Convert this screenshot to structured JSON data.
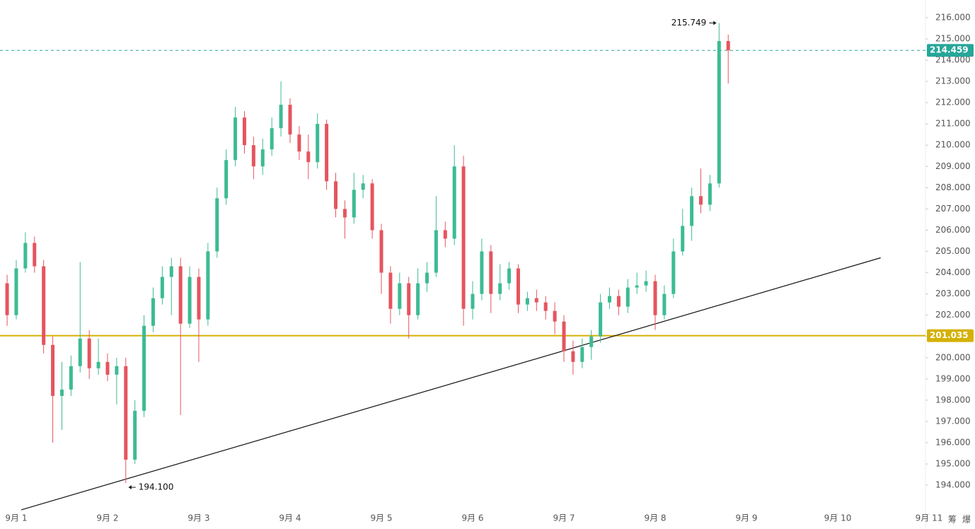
{
  "chart_data": {
    "type": "candlestick",
    "x": [
      -0.1,
      0,
      0.1,
      0.2,
      0.3,
      0.4,
      0.5,
      0.6,
      0.7,
      0.8,
      0.9,
      1,
      1.1,
      1.2,
      1.3,
      1.4,
      1.5,
      1.6,
      1.7,
      1.8,
      1.9,
      2,
      2.1,
      2.2,
      2.3,
      2.4,
      2.5,
      2.6,
      2.7,
      2.8,
      2.9,
      3,
      3.1,
      3.2,
      3.3,
      3.4,
      3.5,
      3.6,
      3.7,
      3.8,
      3.9,
      4,
      4.1,
      4.2,
      4.3,
      4.4,
      4.5,
      4.6,
      4.7,
      4.8,
      4.9,
      5,
      5.1,
      5.2,
      5.3,
      5.4,
      5.5,
      5.6,
      5.7,
      5.8,
      5.9,
      6,
      6.1,
      6.2,
      6.3,
      6.4,
      6.5,
      6.6,
      6.7,
      6.8,
      6.9,
      7,
      7.1,
      7.2,
      7.3,
      7.4,
      7.5,
      7.6,
      7.7,
      7.8
    ],
    "open": [
      203.5,
      202.0,
      204.2,
      205.4,
      204.3,
      200.6,
      198.2,
      198.5,
      199.6,
      200.9,
      199.5,
      199.8,
      199.2,
      199.6,
      195.2,
      197.5,
      201.5,
      202.8,
      203.8,
      204.3,
      201.6,
      203.8,
      201.8,
      205.0,
      207.5,
      209.3,
      211.3,
      210.0,
      209.0,
      209.8,
      210.8,
      211.9,
      210.5,
      209.7,
      209.2,
      211.0,
      208.3,
      207.0,
      206.6,
      207.9,
      208.2,
      206.0,
      204.0,
      202.3,
      203.5,
      202.0,
      203.5,
      204.0,
      206.0,
      205.6,
      209.0,
      202.3,
      203.0,
      205.0,
      203.0,
      203.5,
      204.2,
      202.5,
      202.8,
      202.6,
      202.2,
      201.7,
      200.3,
      199.8,
      200.5,
      201.0,
      202.6,
      202.9,
      202.4,
      203.3,
      203.4,
      203.6,
      202.0,
      203.0,
      205.0,
      206.2,
      207.6,
      207.2,
      208.2,
      214.9
    ],
    "high": [
      203.9,
      204.6,
      205.9,
      205.7,
      204.6,
      201.0,
      199.8,
      200.1,
      204.5,
      201.3,
      200.9,
      200.2,
      200.0,
      200.0,
      198.0,
      202.0,
      203.3,
      204.3,
      204.7,
      204.7,
      204.3,
      204.2,
      205.4,
      208.0,
      209.8,
      211.8,
      211.6,
      210.4,
      210.3,
      211.3,
      213.0,
      212.2,
      210.9,
      210.5,
      211.5,
      211.2,
      208.7,
      207.4,
      208.7,
      208.6,
      208.4,
      206.3,
      204.3,
      204.0,
      203.8,
      204.2,
      204.5,
      207.6,
      206.4,
      210.0,
      209.5,
      203.6,
      205.6,
      205.3,
      204.4,
      204.5,
      204.4,
      203.1,
      203.2,
      202.9,
      202.6,
      202.0,
      200.8,
      200.9,
      201.3,
      203.0,
      203.3,
      203.2,
      203.7,
      204.0,
      204.1,
      203.9,
      203.4,
      205.6,
      207.0,
      208.0,
      208.9,
      208.6,
      215.749,
      215.2
    ],
    "low": [
      201.5,
      201.8,
      204.0,
      204.0,
      200.2,
      196.0,
      196.6,
      198.2,
      199.3,
      199.0,
      199.2,
      198.9,
      197.8,
      194.1,
      195.0,
      197.2,
      201.2,
      202.5,
      202.0,
      197.3,
      201.4,
      199.8,
      201.5,
      204.7,
      207.2,
      209.0,
      209.6,
      208.4,
      208.6,
      209.5,
      210.4,
      210.1,
      209.3,
      208.4,
      208.9,
      207.9,
      206.6,
      205.6,
      206.3,
      207.5,
      205.6,
      203.0,
      201.6,
      202.0,
      200.9,
      201.8,
      203.1,
      203.8,
      205.2,
      205.3,
      201.5,
      201.8,
      202.7,
      202.1,
      202.7,
      203.2,
      202.1,
      202.2,
      202.2,
      201.8,
      201.1,
      199.8,
      199.2,
      199.5,
      199.9,
      200.7,
      202.3,
      202.0,
      202.1,
      203.0,
      203.1,
      201.3,
      201.8,
      202.8,
      204.8,
      205.5,
      206.8,
      206.9,
      208.0,
      212.9
    ],
    "close": [
      202.0,
      204.2,
      205.4,
      204.3,
      200.6,
      198.2,
      198.5,
      199.6,
      200.9,
      199.5,
      199.8,
      199.2,
      199.6,
      195.2,
      197.5,
      201.5,
      202.8,
      203.8,
      204.3,
      201.6,
      203.8,
      201.8,
      205.0,
      207.5,
      209.3,
      211.3,
      210.0,
      209.0,
      209.8,
      210.8,
      211.9,
      210.5,
      209.7,
      209.2,
      211.0,
      208.3,
      207.0,
      206.6,
      207.9,
      208.2,
      206.0,
      204.0,
      202.3,
      203.5,
      202.0,
      203.5,
      204.0,
      206.0,
      205.6,
      209.0,
      202.3,
      203.0,
      205.0,
      203.0,
      203.5,
      204.2,
      202.5,
      202.8,
      202.6,
      202.2,
      201.7,
      200.3,
      199.8,
      200.5,
      201.0,
      202.6,
      202.9,
      202.4,
      203.3,
      203.4,
      203.6,
      202.0,
      203.0,
      205.0,
      206.2,
      207.6,
      207.2,
      208.2,
      214.9,
      214.459
    ],
    "up_color": "#3dbb94",
    "down_color": "#e5555f",
    "xlim": [
      -0.178,
      9.961
    ],
    "ylim": [
      193.07,
      216.83
    ],
    "xticks": [
      {
        "value": 0,
        "label": "9月 1"
      },
      {
        "value": 1,
        "label": "9月 2"
      },
      {
        "value": 2,
        "label": "9月 3"
      },
      {
        "value": 3,
        "label": "9月 4"
      },
      {
        "value": 4,
        "label": "9月 5"
      },
      {
        "value": 5,
        "label": "9月 6"
      },
      {
        "value": 6,
        "label": "9月 7"
      },
      {
        "value": 7,
        "label": "9月 8"
      },
      {
        "value": 8,
        "label": "9月 9"
      },
      {
        "value": 9,
        "label": "9月 10"
      },
      {
        "value": 10,
        "label": "9月 11"
      }
    ],
    "yticks": [
      {
        "value": 194,
        "label": "194.000"
      },
      {
        "value": 195,
        "label": "195.000"
      },
      {
        "value": 196,
        "label": "196.000"
      },
      {
        "value": 197,
        "label": "197.000"
      },
      {
        "value": 198,
        "label": "198.000"
      },
      {
        "value": 199,
        "label": "199.000"
      },
      {
        "value": 200,
        "label": "200.000"
      },
      {
        "value": 201,
        "label": "201.000"
      },
      {
        "value": 202,
        "label": "202.000"
      },
      {
        "value": 203,
        "label": "203.000"
      },
      {
        "value": 204,
        "label": "204.000"
      },
      {
        "value": 205,
        "label": "205.000"
      },
      {
        "value": 206,
        "label": "206.000"
      },
      {
        "value": 207,
        "label": "207.000"
      },
      {
        "value": 208,
        "label": "208.000"
      },
      {
        "value": 209,
        "label": "209.000"
      },
      {
        "value": 210,
        "label": "210.000"
      },
      {
        "value": 211,
        "label": "211.000"
      },
      {
        "value": 212,
        "label": "212.000"
      },
      {
        "value": 213,
        "label": "213.000"
      },
      {
        "value": 214,
        "label": "214.000"
      },
      {
        "value": 215,
        "label": "215.000"
      },
      {
        "value": 216,
        "label": "216.000"
      }
    ],
    "price_lines": [
      {
        "value": 201.035,
        "label": "201.035",
        "color": "#d4b106",
        "style": "solid"
      },
      {
        "value": 214.459,
        "label": "214.459",
        "color": "#26a69a",
        "style": "dashed"
      }
    ],
    "trendline": {
      "x": [
        0.054,
        9.47
      ],
      "y": [
        192.84,
        204.7
      ]
    },
    "annotations": [
      {
        "text": "215.749",
        "x": 7.7,
        "y": 215.749,
        "side": "left"
      },
      {
        "text": "194.100",
        "x": 1.2,
        "y": 194.1,
        "side": "right"
      }
    ],
    "toolbar": [
      "筹",
      "爆"
    ]
  }
}
